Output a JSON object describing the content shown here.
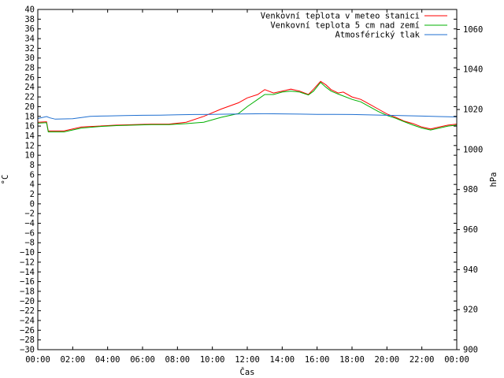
{
  "chart_data": {
    "type": "line",
    "xlabel": "Čas",
    "ylabel": "°C",
    "y2label": "hPa",
    "x_tick_labels": [
      "00:00",
      "02:00",
      "04:00",
      "06:00",
      "08:00",
      "10:00",
      "12:00",
      "14:00",
      "16:00",
      "18:00",
      "20:00",
      "22:00",
      "00:00"
    ],
    "xlim": [
      0,
      24
    ],
    "ylim": [
      -30,
      40
    ],
    "y_ticks": [
      40,
      38,
      36,
      34,
      32,
      30,
      28,
      26,
      24,
      22,
      20,
      18,
      16,
      14,
      12,
      10,
      8,
      6,
      4,
      2,
      0,
      -2,
      -4,
      -6,
      -8,
      -10,
      -12,
      -14,
      -16,
      -18,
      -20,
      -22,
      -24,
      -26,
      -28,
      -30
    ],
    "y2lim": [
      900,
      1070
    ],
    "y2_ticks": [
      1060,
      1040,
      1020,
      1000,
      980,
      960,
      940,
      920,
      900
    ],
    "grid": false,
    "legend_position": "top-right",
    "series": [
      {
        "name": "Venkovní teplota v meteo stanici",
        "color": "#ff0000",
        "axis": "y",
        "x": [
          0,
          0.5,
          0.6,
          1.5,
          2.5,
          3.5,
          4.5,
          5.5,
          6.5,
          7.5,
          8.5,
          9.5,
          10.5,
          11.5,
          12.0,
          12.6,
          13.0,
          13.5,
          14.0,
          14.5,
          15.0,
          15.5,
          15.8,
          16.2,
          16.5,
          16.8,
          17.2,
          17.5,
          18.0,
          18.5,
          19.0,
          19.5,
          20.0,
          20.5,
          21.0,
          21.5,
          22.0,
          22.5,
          23.0,
          23.5,
          24.0
        ],
        "y": [
          16.8,
          16.9,
          15.0,
          15.0,
          15.8,
          16.0,
          16.2,
          16.3,
          16.4,
          16.4,
          16.8,
          18.0,
          19.5,
          20.8,
          21.8,
          22.5,
          23.5,
          22.8,
          23.2,
          23.6,
          23.2,
          22.5,
          23.6,
          25.2,
          24.5,
          23.5,
          22.8,
          23.0,
          22.0,
          21.5,
          20.5,
          19.5,
          18.5,
          17.8,
          17.0,
          16.5,
          15.8,
          15.4,
          15.8,
          16.2,
          16.4
        ]
      },
      {
        "name": "Venkovní teplota 5 cm nad zemí",
        "color": "#00b000",
        "axis": "y",
        "x": [
          0,
          0.5,
          0.6,
          1.5,
          2.5,
          3.5,
          4.5,
          5.5,
          6.5,
          7.5,
          8.5,
          9.5,
          10.5,
          11.5,
          12.0,
          12.6,
          13.0,
          13.5,
          14.0,
          14.5,
          15.0,
          15.5,
          15.8,
          16.2,
          16.5,
          16.8,
          17.2,
          17.5,
          18.0,
          18.5,
          19.0,
          19.5,
          20.0,
          20.5,
          21.0,
          21.5,
          22.0,
          22.5,
          23.0,
          23.5,
          24.0
        ],
        "y": [
          16.6,
          16.7,
          14.8,
          14.8,
          15.6,
          15.9,
          16.1,
          16.2,
          16.3,
          16.3,
          16.5,
          16.8,
          17.8,
          18.6,
          20.0,
          21.5,
          22.5,
          22.5,
          23.0,
          23.2,
          23.0,
          22.4,
          23.2,
          25.0,
          24.0,
          23.2,
          22.6,
          22.2,
          21.5,
          21.0,
          20.0,
          19.0,
          18.2,
          17.6,
          16.9,
          16.2,
          15.6,
          15.2,
          15.6,
          16.0,
          16.2
        ]
      },
      {
        "name": "Atmosférický tlak",
        "color": "#1f6fd0",
        "axis": "y2",
        "x": [
          0,
          0.5,
          0.7,
          1.0,
          2.0,
          3.0,
          4.0,
          5.0,
          6.0,
          7.0,
          8.0,
          9.0,
          10.0,
          11.0,
          12.0,
          13.0,
          14.0,
          15.0,
          16.0,
          17.0,
          18.0,
          19.0,
          20.0,
          21.0,
          22.0,
          23.0,
          24.0
        ],
        "y": [
          1015.5,
          1016.5,
          1015.8,
          1015.2,
          1015.4,
          1016.6,
          1016.8,
          1017.0,
          1017.1,
          1017.2,
          1017.4,
          1017.5,
          1017.6,
          1017.7,
          1017.8,
          1017.9,
          1017.8,
          1017.7,
          1017.6,
          1017.6,
          1017.5,
          1017.3,
          1017.1,
          1016.9,
          1016.7,
          1016.5,
          1016.3
        ]
      }
    ]
  }
}
